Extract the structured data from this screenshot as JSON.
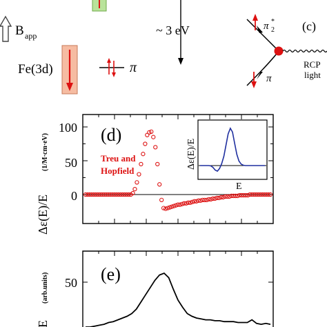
{
  "top": {
    "b_app": "B",
    "b_app_sub": "app",
    "fe3d": "Fe(3d)",
    "pi": "π",
    "energy_gap": "~ 3 eV",
    "pi2_star": "π",
    "pi2_sub": "2",
    "pi2_sup": "*",
    "pi_bottom": "π",
    "rcp": "RCP",
    "light": "light",
    "panel_c": "(c)"
  },
  "panel_d": {
    "label": "(d)",
    "ylabel": "Δε(E)/E",
    "yunits": "(1/M·cm·eV)",
    "legend": [
      "Treu and",
      "Hopfield"
    ],
    "yticks": [
      "100",
      "50",
      "0"
    ],
    "inset_ylabel": "Δε(E)/E",
    "inset_xlabel": "E"
  },
  "panel_e": {
    "label": "(e)",
    "ylabel": "/E",
    "yunits": "(arb.units)",
    "yticks": [
      "50"
    ]
  },
  "colors": {
    "data_red": "#dd1111",
    "inset_line": "#1f2f9f",
    "arrow_red": "#dd1111",
    "fe_box": "#f6bca2",
    "green_box": "#b9e39a"
  },
  "chart_data": [
    {
      "type": "scatter",
      "panel": "d",
      "title": "",
      "ylim": [
        -30,
        115
      ],
      "yticks": [
        0,
        50,
        100
      ],
      "series": [
        {
          "name": "Treu and Hopfield",
          "x": [
            0,
            1,
            2,
            3,
            4,
            5,
            6,
            7,
            8,
            9,
            10,
            11,
            12,
            13,
            14,
            15,
            16,
            17,
            18,
            19,
            20,
            21,
            22,
            23,
            24,
            25,
            26,
            27,
            28,
            29,
            30,
            31,
            32,
            33,
            34,
            35,
            36,
            37,
            38,
            39,
            40,
            41,
            42,
            43,
            44,
            45,
            46,
            47,
            48,
            49,
            50,
            51,
            52,
            53,
            54,
            55,
            56,
            57,
            58,
            59,
            60,
            61,
            62,
            63,
            64,
            65,
            66,
            67,
            68,
            69,
            70,
            71,
            72,
            73,
            74,
            75,
            76,
            77,
            78,
            79,
            80,
            81,
            82,
            83,
            84,
            85,
            86,
            87,
            88,
            89,
            90
          ],
          "y": [
            0,
            0,
            0,
            0,
            0,
            0,
            0,
            0,
            0,
            0,
            0,
            0,
            0,
            0,
            0,
            0,
            0,
            0,
            0,
            0,
            0,
            0,
            0,
            2,
            8,
            18,
            30,
            45,
            60,
            75,
            88,
            92,
            93,
            85,
            70,
            45,
            15,
            -8,
            -20,
            -21,
            -20,
            -19,
            -18,
            -17,
            -16,
            -15,
            -15,
            -14,
            -13,
            -13,
            -12,
            -12,
            -11,
            -10,
            -10,
            -9,
            -9,
            -8,
            -8,
            -8,
            -7,
            -7,
            -6,
            -6,
            -5,
            -5,
            -4,
            -4,
            -3,
            -3,
            -3,
            -2,
            -2,
            -2,
            -2,
            -1,
            -1,
            -1,
            -1,
            -1,
            0,
            0,
            0,
            0,
            0,
            0,
            0,
            0,
            0,
            0,
            0
          ]
        }
      ]
    },
    {
      "type": "line",
      "panel": "d-inset",
      "x": [
        0,
        1,
        2,
        3,
        4,
        5,
        6,
        7,
        8,
        9,
        10,
        11,
        12,
        13,
        14,
        15,
        16,
        17,
        18,
        19,
        20,
        21,
        22,
        23,
        24,
        25,
        26,
        27,
        28,
        29,
        30
      ],
      "y": [
        0,
        0,
        0,
        0,
        0,
        -0.01,
        -0.05,
        -0.12,
        -0.15,
        -0.08,
        0.05,
        0.25,
        0.55,
        0.85,
        1.0,
        0.9,
        0.6,
        0.3,
        0.12,
        0.04,
        0.01,
        0,
        0,
        0,
        0,
        0,
        0,
        0,
        0,
        0,
        0
      ]
    },
    {
      "type": "line",
      "panel": "e",
      "ylim": [
        0,
        80
      ],
      "yticks": [
        50
      ],
      "x": [
        0,
        1,
        2,
        3,
        4,
        5,
        6,
        7,
        8,
        9,
        10,
        11,
        12,
        13,
        14,
        15,
        16,
        17,
        18,
        19,
        20,
        21,
        22,
        23,
        24,
        25,
        26,
        27,
        28,
        29,
        30,
        31,
        32,
        33,
        34,
        35,
        36,
        37,
        38,
        39,
        40
      ],
      "y": [
        0,
        0,
        1,
        2,
        3,
        5,
        6,
        8,
        10,
        12,
        15,
        20,
        28,
        36,
        44,
        52,
        58,
        60,
        55,
        42,
        30,
        22,
        15,
        12,
        10,
        9,
        8,
        8,
        7,
        7,
        6,
        6,
        6,
        5,
        5,
        5,
        8,
        4,
        3,
        4,
        3
      ]
    }
  ]
}
